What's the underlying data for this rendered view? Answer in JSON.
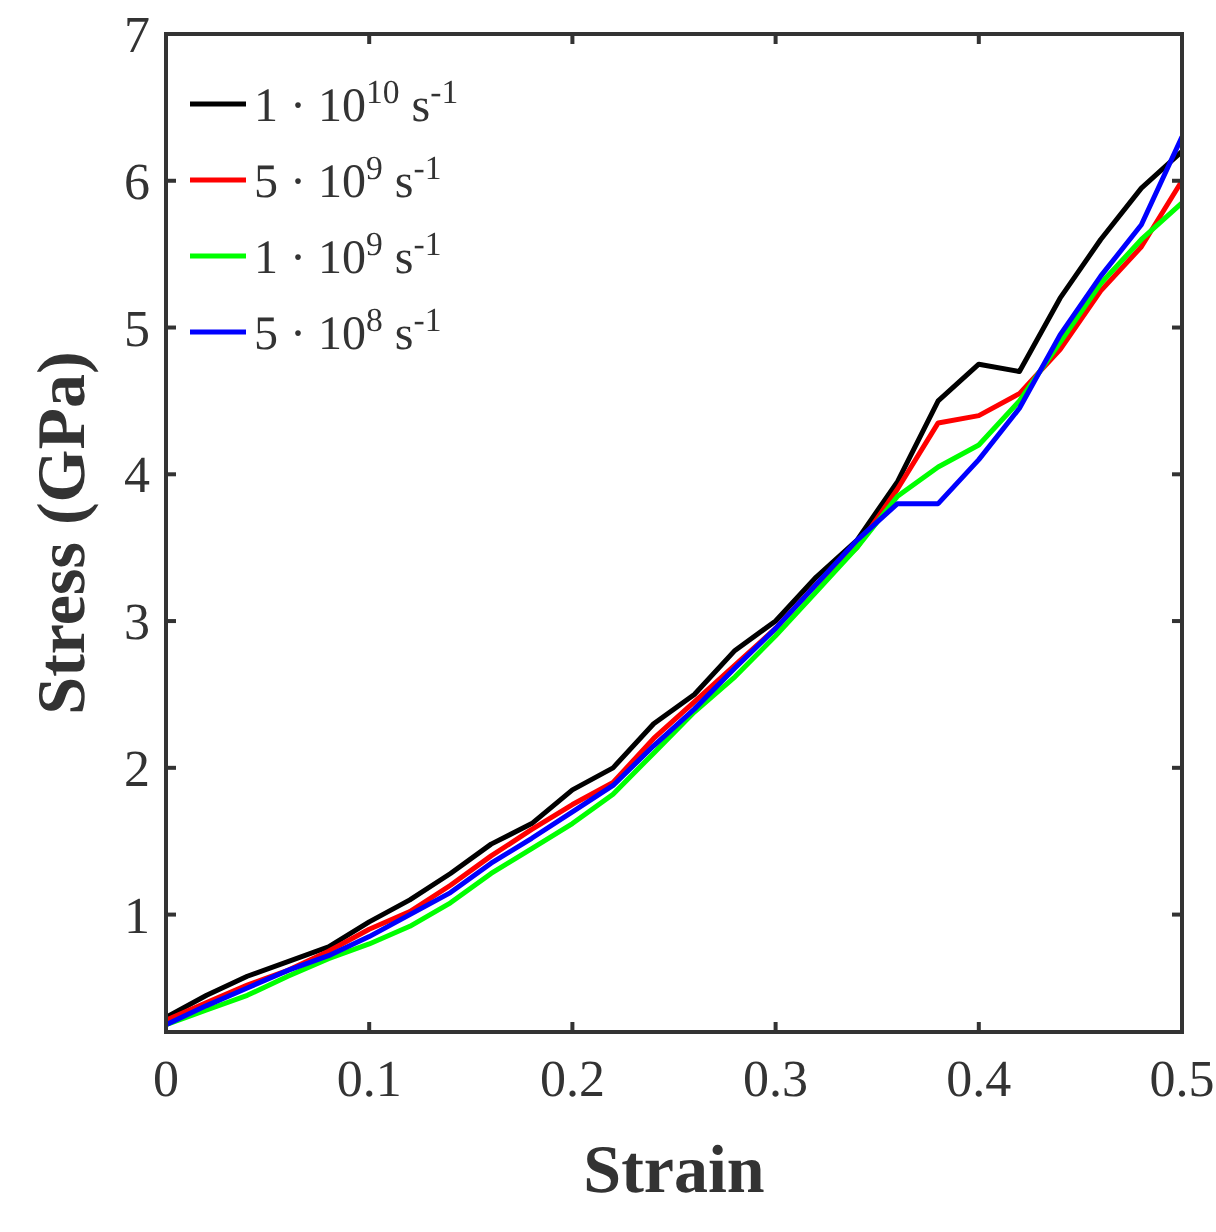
{
  "chart_data": {
    "type": "line",
    "xlabel": "Strain",
    "ylabel": "Stress (GPa)",
    "x": [
      0,
      0.02,
      0.04,
      0.06,
      0.08,
      0.1,
      0.12,
      0.14,
      0.16,
      0.18,
      0.2,
      0.22,
      0.24,
      0.26,
      0.28,
      0.3,
      0.32,
      0.34,
      0.36,
      0.38,
      0.4,
      0.42,
      0.44,
      0.46,
      0.48,
      0.5
    ],
    "series": [
      {
        "name": "1 · 10$^{10}$ s$^{-1}$",
        "color": "#000000",
        "values": [
          0.3,
          0.45,
          0.58,
          0.68,
          0.78,
          0.95,
          1.1,
          1.28,
          1.48,
          1.62,
          1.85,
          2.0,
          2.3,
          2.5,
          2.8,
          3.0,
          3.3,
          3.55,
          3.95,
          4.5,
          4.75,
          4.7,
          5.2,
          5.6,
          5.95,
          6.2
        ]
      },
      {
        "name": "5 · 10$^{9}$ s$^{-1}$",
        "color": "#ff0000",
        "values": [
          0.28,
          0.4,
          0.52,
          0.62,
          0.75,
          0.9,
          1.02,
          1.2,
          1.4,
          1.58,
          1.75,
          1.9,
          2.2,
          2.45,
          2.7,
          2.95,
          3.25,
          3.5,
          3.9,
          4.35,
          4.4,
          4.55,
          4.85,
          5.25,
          5.55,
          6.0
        ]
      },
      {
        "name": "1 · 10$^{9}$ s$^{-1}$",
        "color": "#00ff00",
        "values": [
          0.25,
          0.35,
          0.45,
          0.58,
          0.7,
          0.8,
          0.92,
          1.08,
          1.28,
          1.45,
          1.62,
          1.82,
          2.1,
          2.38,
          2.62,
          2.9,
          3.2,
          3.5,
          3.85,
          4.05,
          4.2,
          4.5,
          4.9,
          5.3,
          5.6,
          5.85
        ]
      },
      {
        "name": "5 · 10$^{8}$ s$^{-1}$",
        "color": "#0000ff",
        "values": [
          0.25,
          0.38,
          0.5,
          0.62,
          0.72,
          0.85,
          1.0,
          1.15,
          1.35,
          1.52,
          1.7,
          1.88,
          2.15,
          2.4,
          2.68,
          2.95,
          3.25,
          3.55,
          3.8,
          3.8,
          4.1,
          4.45,
          4.95,
          5.35,
          5.7,
          6.3
        ]
      }
    ],
    "xlim": [
      0,
      0.5
    ],
    "xticks": [
      0,
      0.1,
      0.2,
      0.3,
      0.4,
      0.5
    ],
    "ylim": [
      0.2,
      7
    ],
    "yticks": [
      1,
      2,
      3,
      4,
      5,
      6,
      7
    ],
    "legend": "top left",
    "grid": false,
    "marker": "none",
    "line_style": "solid"
  }
}
